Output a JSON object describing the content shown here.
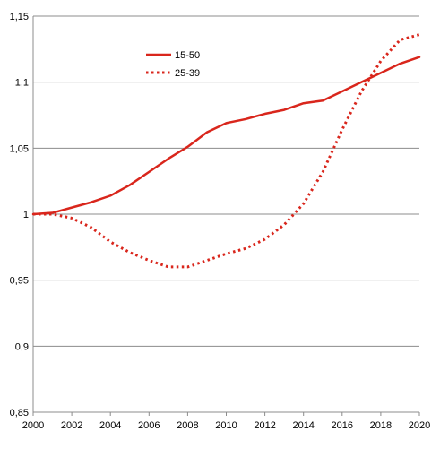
{
  "chart_data": {
    "type": "line",
    "title": "",
    "xlabel": "",
    "ylabel": "",
    "x": [
      2000,
      2001,
      2002,
      2003,
      2004,
      2005,
      2006,
      2007,
      2008,
      2009,
      2010,
      2011,
      2012,
      2013,
      2014,
      2015,
      2016,
      2017,
      2018,
      2019,
      2020
    ],
    "xlim": [
      2000,
      2020
    ],
    "ylim": [
      0.85,
      1.15
    ],
    "x_ticks": [
      2000,
      2002,
      2004,
      2006,
      2008,
      2010,
      2012,
      2014,
      2016,
      2018,
      2020
    ],
    "x_tick_labels": [
      "2000",
      "2002",
      "2004",
      "2006",
      "2008",
      "2010",
      "2012",
      "2014",
      "2016",
      "2018",
      "2020"
    ],
    "y_ticks": [
      0.85,
      0.9,
      0.95,
      1.0,
      1.05,
      1.1,
      1.15
    ],
    "y_tick_labels": [
      "0,85",
      "0,9",
      "0,95",
      "1",
      "1,05",
      "1,1",
      "1,15"
    ],
    "grid": "horizontal",
    "legend": "top-left",
    "series": [
      {
        "name": "15-50",
        "style": "solid",
        "color": "#d9261c",
        "values": [
          1.0,
          1.001,
          1.005,
          1.009,
          1.014,
          1.022,
          1.032,
          1.042,
          1.051,
          1.062,
          1.069,
          1.072,
          1.076,
          1.079,
          1.084,
          1.086,
          1.093,
          1.1,
          1.107,
          1.114,
          1.119
        ]
      },
      {
        "name": "25-39",
        "style": "dotted",
        "color": "#d9261c",
        "values": [
          1.0,
          1.0,
          0.997,
          0.99,
          0.979,
          0.971,
          0.965,
          0.96,
          0.96,
          0.965,
          0.97,
          0.974,
          0.981,
          0.992,
          1.008,
          1.032,
          1.064,
          1.093,
          1.116,
          1.132,
          1.136
        ]
      }
    ]
  }
}
